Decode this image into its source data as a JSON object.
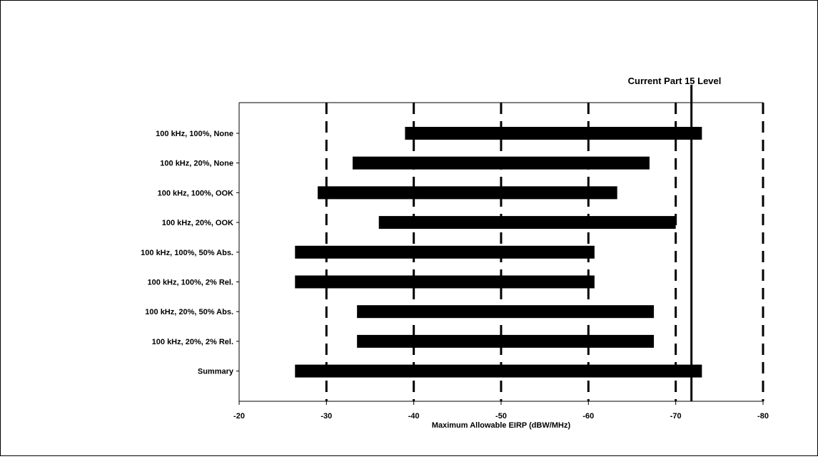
{
  "chart_data": {
    "type": "bar",
    "orientation": "horizontal-range",
    "title": "",
    "xlabel": "Maximum Allowable EIRP (dBW/MHz)",
    "ylabel": "",
    "xlim": [
      -20,
      -80
    ],
    "x_ticks": [
      -20,
      -30,
      -40,
      -50,
      -60,
      -70,
      -80
    ],
    "x_tick_labels": [
      "-20",
      "-30",
      "-40",
      "-50",
      "-60",
      "-70",
      "-80"
    ],
    "gridlines": "dashed vertical at each tick",
    "categories": [
      "100 kHz, 100%, None",
      "100 kHz, 20%, None",
      "100 kHz, 100%, OOK",
      "100 kHz, 20%, OOK",
      "100 kHz, 100%, 50% Abs.",
      "100 kHz, 100%, 2% Rel.",
      "100 kHz, 20%, 50% Abs.",
      "100 kHz, 20%, 2% Rel.",
      "Summary"
    ],
    "ranges": [
      [
        -39,
        -73
      ],
      [
        -33,
        -67
      ],
      [
        -29,
        -63.3
      ],
      [
        -36,
        -70
      ],
      [
        -26.4,
        -60.7
      ],
      [
        -26.4,
        -60.7
      ],
      [
        -33.5,
        -67.5
      ],
      [
        -33.5,
        -67.5
      ],
      [
        -26.4,
        -73
      ]
    ],
    "reference_line": {
      "value": -71.8,
      "label": "Current Part 15 Level"
    }
  }
}
